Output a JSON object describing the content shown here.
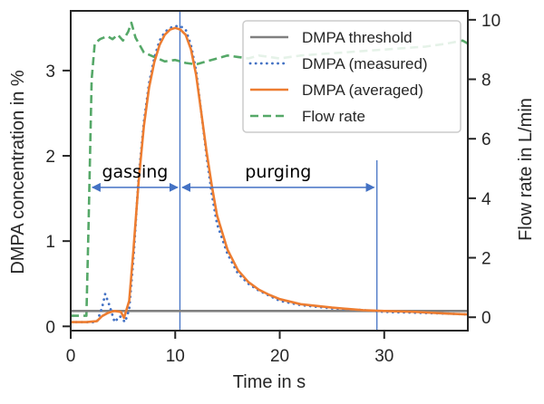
{
  "chart_data": {
    "type": "line",
    "title": "",
    "xlabel": "Time in s",
    "ylabel": "DMPA concentration in %",
    "ylabel_right": "Flow rate in L/min",
    "xlim": [
      0,
      38
    ],
    "ylim": [
      -0.05,
      3.7
    ],
    "ylim_right": [
      -0.45,
      10.3
    ],
    "xticks": [
      0,
      10,
      20,
      30
    ],
    "yticks": [
      0,
      1,
      2,
      3
    ],
    "yticks_right": [
      0,
      2,
      4,
      6,
      8,
      10
    ],
    "grid": false,
    "legend_position": "top-right",
    "series": [
      {
        "name": "DMPA threshold",
        "axis": "left",
        "style": "solid",
        "color": "#808080",
        "x": [
          0,
          38
        ],
        "y": [
          0.18,
          0.18
        ]
      },
      {
        "name": "DMPA (measured)",
        "axis": "left",
        "style": "dotted",
        "color": "#4472c4",
        "x": [
          0,
          1.5,
          2.5,
          3.0,
          3.3,
          3.7,
          4.2,
          4.7,
          5.2,
          5.6,
          6.0,
          6.5,
          7.0,
          7.5,
          8.0,
          8.5,
          9.0,
          9.5,
          10.0,
          10.5,
          11.0,
          11.5,
          12.0,
          12.5,
          13.0,
          13.5,
          14.0,
          15.0,
          16.0,
          17.0,
          18.0,
          19.0,
          20.0,
          22.0,
          25.0,
          28.0,
          30.0,
          33.0,
          36.0,
          38.0
        ],
        "y": [
          0.05,
          0.05,
          0.05,
          0.22,
          0.38,
          0.25,
          0.05,
          0.12,
          0.05,
          0.2,
          0.8,
          1.75,
          2.4,
          2.85,
          3.15,
          3.35,
          3.45,
          3.5,
          3.52,
          3.52,
          3.48,
          3.3,
          3.0,
          2.5,
          2.0,
          1.55,
          1.2,
          0.85,
          0.62,
          0.5,
          0.42,
          0.36,
          0.3,
          0.25,
          0.21,
          0.19,
          0.17,
          0.16,
          0.15,
          0.14
        ]
      },
      {
        "name": "DMPA (averaged)",
        "axis": "left",
        "style": "solid",
        "color": "#ed7d31",
        "x": [
          0,
          1.5,
          2.5,
          3.0,
          3.6,
          4.2,
          4.8,
          5.1,
          5.6,
          6.0,
          6.5,
          7.0,
          7.5,
          8.0,
          8.5,
          9.0,
          9.5,
          10.0,
          10.5,
          11.0,
          11.5,
          12.0,
          12.5,
          13.0,
          13.5,
          14.0,
          15.0,
          16.0,
          17.0,
          18.0,
          19.0,
          20.0,
          22.0,
          25.0,
          28.0,
          30.0,
          33.0,
          36.0,
          38.0
        ],
        "y": [
          0.05,
          0.05,
          0.06,
          0.12,
          0.16,
          0.18,
          0.17,
          0.1,
          0.3,
          0.9,
          1.7,
          2.35,
          2.8,
          3.1,
          3.3,
          3.42,
          3.48,
          3.5,
          3.48,
          3.42,
          3.25,
          2.95,
          2.5,
          2.05,
          1.65,
          1.3,
          0.9,
          0.66,
          0.52,
          0.43,
          0.37,
          0.32,
          0.26,
          0.22,
          0.19,
          0.18,
          0.17,
          0.15,
          0.14
        ]
      },
      {
        "name": "Flow rate",
        "axis": "right",
        "style": "dashed",
        "color": "#55a868",
        "x": [
          0,
          1.5,
          1.7,
          2.0,
          2.3,
          2.8,
          3.5,
          4.0,
          4.5,
          5.0,
          5.5,
          5.8,
          6.2,
          7.0,
          8.0,
          9.0,
          10.0,
          11.0,
          12.0,
          13.0,
          14.0,
          15.0,
          16.0,
          17.0,
          18.0,
          19.0,
          20.0,
          22.0,
          24.0,
          26.0,
          28.0,
          30.0,
          32.0,
          34.0,
          36.0,
          37.5,
          38.0
        ],
        "y": [
          0.05,
          0.05,
          3.0,
          8.0,
          9.2,
          9.35,
          9.45,
          9.35,
          9.5,
          9.3,
          9.6,
          9.9,
          9.4,
          8.9,
          8.75,
          8.6,
          8.65,
          8.55,
          8.5,
          8.6,
          8.7,
          8.8,
          8.75,
          8.7,
          8.8,
          8.75,
          8.7,
          8.8,
          8.85,
          8.9,
          8.95,
          9.0,
          9.05,
          9.1,
          9.2,
          9.3,
          9.2
        ]
      }
    ],
    "annotations": [
      {
        "text": "gassing",
        "x_start": 1.9,
        "x_end": 10.4,
        "y": 1.63,
        "arrow": "double"
      },
      {
        "text": "purging",
        "x_start": 10.5,
        "x_end": 29.2,
        "y": 1.63,
        "arrow": "double"
      }
    ],
    "vertical_lines": [
      10.45,
      29.3
    ],
    "vertical_line_color": "#4472c4"
  }
}
